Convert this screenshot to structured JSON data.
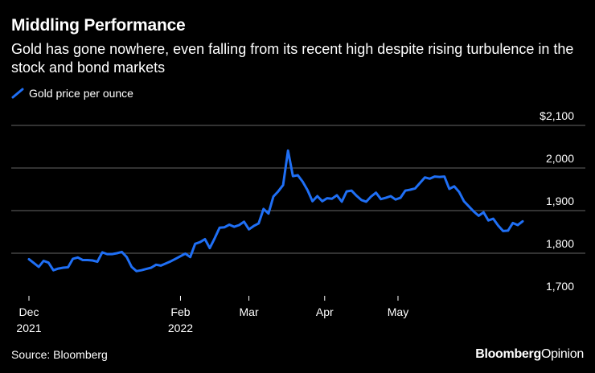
{
  "header": {
    "title": "Middling Performance",
    "subtitle": "Gold has gone nowhere, even falling from its recent high despite rising turbulence in the stock and bond markets"
  },
  "footer": {
    "source": "Source: Bloomberg",
    "brand_bold": "Bloomberg",
    "brand_light": "Opinion"
  },
  "colors": {
    "background": "#000000",
    "line": "#1f6ff5",
    "grid": "#666666",
    "text": "#ffffff"
  },
  "chart_data": {
    "type": "line",
    "title": "Middling Performance",
    "legend": [
      "Gold price per ounce"
    ],
    "xlabel": "",
    "ylabel": "",
    "ylim": [
      1700,
      2100
    ],
    "yticks": [
      "$2,100",
      "2,000",
      "1,900",
      "1,800",
      "1,700"
    ],
    "ytick_values": [
      2100,
      2000,
      1900,
      1800,
      1700
    ],
    "xticks": [
      {
        "label": "Dec",
        "sub": "2021",
        "t": 0
      },
      {
        "label": "Feb",
        "sub": "2022",
        "t": 62
      },
      {
        "label": "Mar",
        "sub": "",
        "t": 90
      },
      {
        "label": "Apr",
        "sub": "",
        "t": 121
      },
      {
        "label": "May",
        "sub": "",
        "t": 151
      }
    ],
    "series": [
      {
        "name": "Gold price per ounce",
        "points": [
          [
            0,
            1786
          ],
          [
            2,
            1777
          ],
          [
            4,
            1768
          ],
          [
            6,
            1782
          ],
          [
            8,
            1778
          ],
          [
            10,
            1760
          ],
          [
            12,
            1764
          ],
          [
            14,
            1766
          ],
          [
            16,
            1767
          ],
          [
            18,
            1787
          ],
          [
            20,
            1790
          ],
          [
            22,
            1784
          ],
          [
            24,
            1784
          ],
          [
            26,
            1783
          ],
          [
            28,
            1780
          ],
          [
            30,
            1802
          ],
          [
            32,
            1798
          ],
          [
            34,
            1798
          ],
          [
            36,
            1800
          ],
          [
            38,
            1803
          ],
          [
            40,
            1791
          ],
          [
            42,
            1768
          ],
          [
            44,
            1758
          ],
          [
            46,
            1760
          ],
          [
            48,
            1763
          ],
          [
            50,
            1766
          ],
          [
            52,
            1773
          ],
          [
            54,
            1771
          ],
          [
            56,
            1776
          ],
          [
            58,
            1781
          ],
          [
            60,
            1787
          ],
          [
            62,
            1793
          ],
          [
            64,
            1799
          ],
          [
            66,
            1791
          ],
          [
            68,
            1822
          ],
          [
            70,
            1826
          ],
          [
            72,
            1833
          ],
          [
            74,
            1812
          ],
          [
            76,
            1835
          ],
          [
            78,
            1860
          ],
          [
            80,
            1861
          ],
          [
            82,
            1867
          ],
          [
            84,
            1862
          ],
          [
            86,
            1866
          ],
          [
            88,
            1874
          ],
          [
            90,
            1856
          ],
          [
            92,
            1864
          ],
          [
            94,
            1870
          ],
          [
            96,
            1904
          ],
          [
            98,
            1893
          ],
          [
            100,
            1933
          ],
          [
            102,
            1945
          ],
          [
            104,
            1960
          ],
          [
            106,
            2041
          ],
          [
            108,
            1981
          ],
          [
            110,
            1983
          ],
          [
            112,
            1968
          ],
          [
            114,
            1948
          ],
          [
            116,
            1922
          ],
          [
            118,
            1934
          ],
          [
            120,
            1922
          ],
          [
            122,
            1929
          ],
          [
            124,
            1928
          ],
          [
            126,
            1936
          ],
          [
            128,
            1921
          ],
          [
            130,
            1945
          ],
          [
            132,
            1947
          ],
          [
            134,
            1935
          ],
          [
            136,
            1925
          ],
          [
            138,
            1921
          ],
          [
            140,
            1933
          ],
          [
            142,
            1942
          ],
          [
            144,
            1927
          ],
          [
            146,
            1930
          ],
          [
            148,
            1934
          ],
          [
            150,
            1926
          ],
          [
            152,
            1930
          ],
          [
            154,
            1947
          ],
          [
            156,
            1949
          ],
          [
            158,
            1952
          ],
          [
            160,
            1965
          ],
          [
            162,
            1978
          ],
          [
            164,
            1975
          ],
          [
            166,
            1980
          ],
          [
            168,
            1979
          ],
          [
            170,
            1980
          ],
          [
            172,
            1951
          ],
          [
            174,
            1957
          ],
          [
            176,
            1944
          ],
          [
            178,
            1922
          ],
          [
            180,
            1910
          ],
          [
            182,
            1898
          ],
          [
            184,
            1888
          ],
          [
            186,
            1896
          ],
          [
            188,
            1877
          ],
          [
            190,
            1881
          ],
          [
            192,
            1865
          ],
          [
            194,
            1852
          ],
          [
            196,
            1853
          ],
          [
            198,
            1871
          ],
          [
            200,
            1866
          ],
          [
            202,
            1875
          ]
        ]
      }
    ]
  }
}
